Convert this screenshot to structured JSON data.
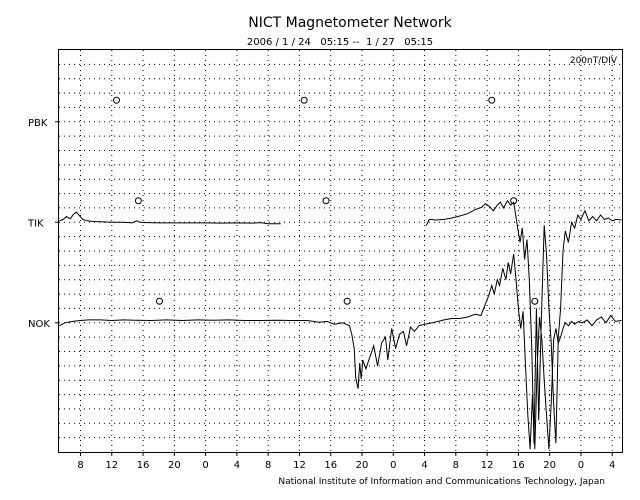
{
  "chart_data": {
    "type": "line",
    "title": "NICT Magnetometer Network",
    "subtitle": "2006 / 1 / 24   05:15 --  1 / 27   05:15",
    "scale_label": "200nT/DIV",
    "credit": "National Institute of Information and Communications Technology, Japan",
    "x_unit": "hour (UT)",
    "x_range": [
      5.25,
      77.25
    ],
    "x_ticks": [
      {
        "x": 8,
        "label": "8"
      },
      {
        "x": 12,
        "label": "12"
      },
      {
        "x": 16,
        "label": "16"
      },
      {
        "x": 20,
        "label": "20"
      },
      {
        "x": 24,
        "label": "0"
      },
      {
        "x": 28,
        "label": "4"
      },
      {
        "x": 32,
        "label": "8"
      },
      {
        "x": 36,
        "label": "12"
      },
      {
        "x": 40,
        "label": "16"
      },
      {
        "x": 44,
        "label": "20"
      },
      {
        "x": 48,
        "label": "0"
      },
      {
        "x": 52,
        "label": "4"
      },
      {
        "x": 56,
        "label": "8"
      },
      {
        "x": 60,
        "label": "12"
      },
      {
        "x": 64,
        "label": "16"
      },
      {
        "x": 68,
        "label": "20"
      },
      {
        "x": 72,
        "label": "0"
      },
      {
        "x": 76,
        "label": "4"
      }
    ],
    "y_range_div": [
      -3.5,
      10.5
    ],
    "grid": true,
    "stations": [
      {
        "name": "PBK",
        "baseline_div": 8
      },
      {
        "name": "TIK",
        "baseline_div": 4.5
      },
      {
        "name": "NOK",
        "baseline_div": 1
      }
    ],
    "markers": [
      {
        "station": "PBK",
        "x": 12.6,
        "y": 8.75
      },
      {
        "station": "PBK",
        "x": 36.6,
        "y": 8.75
      },
      {
        "station": "PBK",
        "x": 60.6,
        "y": 8.75
      },
      {
        "station": "TIK",
        "x": 15.4,
        "y": 5.25
      },
      {
        "station": "TIK",
        "x": 39.4,
        "y": 5.25
      },
      {
        "station": "TIK",
        "x": 63.4,
        "y": 5.25
      },
      {
        "station": "NOK",
        "x": 18.1,
        "y": 1.75
      },
      {
        "station": "NOK",
        "x": 42.1,
        "y": 1.75
      },
      {
        "station": "NOK",
        "x": 66.1,
        "y": 1.75
      }
    ],
    "series": [
      {
        "name": "TIK",
        "segments": [
          [
            [
              5.3,
              4.55
            ],
            [
              5.8,
              4.6
            ],
            [
              6.2,
              4.7
            ],
            [
              6.7,
              4.62
            ],
            [
              7.1,
              4.78
            ],
            [
              7.5,
              4.85
            ],
            [
              7.9,
              4.72
            ],
            [
              8.3,
              4.6
            ],
            [
              8.8,
              4.55
            ],
            [
              9.5,
              4.53
            ],
            [
              10.5,
              4.52
            ],
            [
              12,
              4.5
            ],
            [
              13.5,
              4.5
            ],
            [
              14.6,
              4.48
            ],
            [
              15.2,
              4.55
            ],
            [
              15.6,
              4.5
            ],
            [
              16.5,
              4.49
            ],
            [
              18,
              4.48
            ],
            [
              20,
              4.48
            ],
            [
              22,
              4.48
            ],
            [
              24,
              4.48
            ],
            [
              26,
              4.47
            ],
            [
              28,
              4.48
            ],
            [
              30,
              4.47
            ],
            [
              31,
              4.49
            ],
            [
              32,
              4.45
            ],
            [
              33.6,
              4.45
            ]
          ],
          [
            [
              52.2,
              4.38
            ],
            [
              52.6,
              4.6
            ],
            [
              53.5,
              4.58
            ],
            [
              54.5,
              4.6
            ],
            [
              55.5,
              4.65
            ],
            [
              56.5,
              4.72
            ],
            [
              57.5,
              4.8
            ],
            [
              58.5,
              4.95
            ],
            [
              59.3,
              5.02
            ],
            [
              59.8,
              5.15
            ],
            [
              60.3,
              5.05
            ],
            [
              60.8,
              4.9
            ],
            [
              61.3,
              5.1
            ],
            [
              61.7,
              5.2
            ],
            [
              62.1,
              5.0
            ],
            [
              62.6,
              5.25
            ],
            [
              63,
              5.1
            ],
            [
              63.4,
              5.2
            ],
            [
              63.8,
              4.5
            ],
            [
              64.2,
              3.8
            ],
            [
              64.5,
              4.3
            ],
            [
              64.8,
              3.2
            ],
            [
              65.1,
              3.9
            ],
            [
              65.4,
              2.5
            ],
            [
              65.7,
              0.2
            ],
            [
              66,
              -3.2
            ],
            [
              66.3,
              1.5
            ],
            [
              66.6,
              -2.4
            ],
            [
              66.9,
              0.8
            ],
            [
              67.3,
              4.4
            ],
            [
              67.6,
              3.4
            ],
            [
              67.9,
              1.5
            ],
            [
              68.2,
              0.3
            ],
            [
              68.5,
              -1.8
            ],
            [
              68.8,
              -3.2
            ],
            [
              69.1,
              0.5
            ],
            [
              69.4,
              1.5
            ],
            [
              69.7,
              3.5
            ],
            [
              70,
              4.2
            ],
            [
              70.4,
              3.8
            ],
            [
              70.8,
              4.5
            ],
            [
              71.2,
              4.3
            ],
            [
              71.6,
              4.75
            ],
            [
              72,
              4.6
            ],
            [
              72.5,
              4.9
            ],
            [
              73,
              4.55
            ],
            [
              73.5,
              4.7
            ],
            [
              74,
              4.55
            ],
            [
              74.5,
              4.75
            ],
            [
              75,
              4.6
            ],
            [
              75.5,
              4.65
            ],
            [
              76,
              4.55
            ],
            [
              76.5,
              4.6
            ],
            [
              77.2,
              4.58
            ]
          ]
        ]
      },
      {
        "name": "NOK",
        "segments": [
          [
            [
              5.3,
              0.9
            ],
            [
              6,
              1.0
            ],
            [
              7,
              1.05
            ],
            [
              8,
              1.08
            ],
            [
              9,
              1.1
            ],
            [
              10.5,
              1.1
            ],
            [
              12,
              1.08
            ],
            [
              13.5,
              1.1
            ],
            [
              15,
              1.09
            ],
            [
              17,
              1.08
            ],
            [
              19,
              1.1
            ],
            [
              21,
              1.08
            ],
            [
              23,
              1.1
            ],
            [
              25,
              1.09
            ],
            [
              27,
              1.1
            ],
            [
              29,
              1.08
            ],
            [
              31,
              1.08
            ],
            [
              33,
              1.09
            ],
            [
              35,
              1.08
            ],
            [
              37,
              1.08
            ],
            [
              38.5,
              1.02
            ],
            [
              39.5,
              1.05
            ],
            [
              40.5,
              0.95
            ],
            [
              41.5,
              1.0
            ],
            [
              42.4,
              0.9
            ],
            [
              42.7,
              0.6
            ],
            [
              43,
              0.1
            ],
            [
              43.2,
              -0.9
            ],
            [
              43.5,
              -1.3
            ],
            [
              43.7,
              -0.4
            ],
            [
              43.9,
              -0.95
            ],
            [
              44.1,
              -0.3
            ],
            [
              44.5,
              -0.6
            ],
            [
              45,
              -0.2
            ],
            [
              45.5,
              0.2
            ],
            [
              46,
              -0.5
            ],
            [
              46.5,
              0.3
            ],
            [
              47,
              0.5
            ],
            [
              47.3,
              -0.3
            ],
            [
              47.8,
              0.8
            ],
            [
              48.3,
              0.1
            ],
            [
              48.8,
              0.6
            ],
            [
              49.3,
              0.7
            ],
            [
              49.7,
              0.2
            ],
            [
              50.2,
              0.85
            ],
            [
              50.7,
              0.7
            ],
            [
              51.3,
              0.9
            ],
            [
              52,
              0.95
            ],
            [
              53,
              1.0
            ],
            [
              54.5,
              1.1
            ],
            [
              55.5,
              1.15
            ],
            [
              56.5,
              1.15
            ],
            [
              57.5,
              1.2
            ],
            [
              58.5,
              1.3
            ],
            [
              59.2,
              1.25
            ],
            [
              59.7,
              1.6
            ],
            [
              60.2,
              1.95
            ],
            [
              60.6,
              2.3
            ],
            [
              60.9,
              2.0
            ],
            [
              61.3,
              2.5
            ],
            [
              61.6,
              2.3
            ],
            [
              62,
              2.9
            ],
            [
              62.4,
              2.5
            ],
            [
              62.7,
              3.1
            ],
            [
              63,
              2.7
            ],
            [
              63.4,
              3.4
            ],
            [
              63.7,
              2.5
            ],
            [
              64,
              1.5
            ],
            [
              64.3,
              0.8
            ],
            [
              64.6,
              1.4
            ],
            [
              64.9,
              -0.4
            ],
            [
              65.2,
              -2.2
            ],
            [
              65.5,
              -3.4
            ],
            [
              65.8,
              -1.5
            ],
            [
              66.1,
              -3.4
            ],
            [
              66.4,
              -0.5
            ],
            [
              66.7,
              1.2
            ],
            [
              67,
              0.4
            ],
            [
              67.3,
              -1.0
            ],
            [
              67.6,
              -2.2
            ],
            [
              67.9,
              -3.4
            ],
            [
              68.2,
              -1.8
            ],
            [
              68.5,
              0.4
            ],
            [
              68.8,
              0.8
            ],
            [
              69.1,
              0.3
            ],
            [
              69.4,
              0.5
            ],
            [
              69.7,
              0.8
            ],
            [
              70,
              1.0
            ],
            [
              70.4,
              0.9
            ],
            [
              70.8,
              1.05
            ],
            [
              71.2,
              0.95
            ],
            [
              71.7,
              1.05
            ],
            [
              72.2,
              1.0
            ],
            [
              72.8,
              1.1
            ],
            [
              73.4,
              0.9
            ],
            [
              74,
              1.1
            ],
            [
              74.6,
              1.2
            ],
            [
              75.2,
              1.0
            ],
            [
              75.8,
              1.25
            ],
            [
              76.4,
              1.05
            ],
            [
              77.2,
              1.08
            ]
          ]
        ]
      }
    ]
  }
}
